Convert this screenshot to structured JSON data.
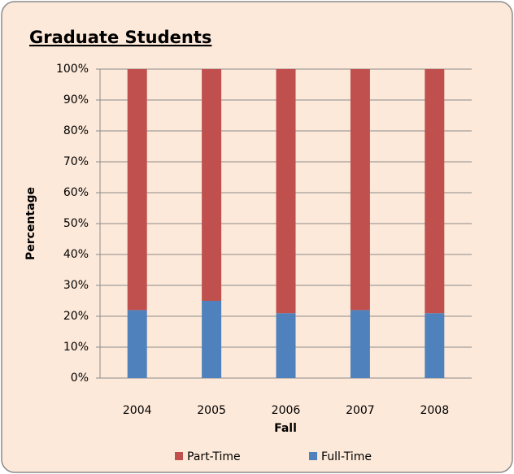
{
  "chart_data": {
    "type": "stacked_bar",
    "title": "Graduate Students",
    "x_label": "Fall",
    "y_label": "Percentage",
    "categories": [
      "2004",
      "2005",
      "2006",
      "2007",
      "2008"
    ],
    "series": [
      {
        "name": "Part-Time",
        "color": "#c0504d",
        "values": [
          78,
          75,
          79,
          78,
          79
        ]
      },
      {
        "name": "Full-Time",
        "color": "#4f81bd",
        "values": [
          22,
          25,
          21,
          22,
          21
        ]
      }
    ],
    "ylim": [
      0,
      100
    ],
    "yticks": [
      {
        "value": 0,
        "label": "0%"
      },
      {
        "value": 10,
        "label": "10%"
      },
      {
        "value": 20,
        "label": "20%"
      },
      {
        "value": 30,
        "label": "30%"
      },
      {
        "value": 40,
        "label": "40%"
      },
      {
        "value": 50,
        "label": "50%"
      },
      {
        "value": 60,
        "label": "60%"
      },
      {
        "value": 70,
        "label": "70%"
      },
      {
        "value": 80,
        "label": "80%"
      },
      {
        "value": 90,
        "label": "90%"
      },
      {
        "value": 100,
        "label": "100%"
      }
    ],
    "grid": true,
    "legend": "bottom"
  }
}
